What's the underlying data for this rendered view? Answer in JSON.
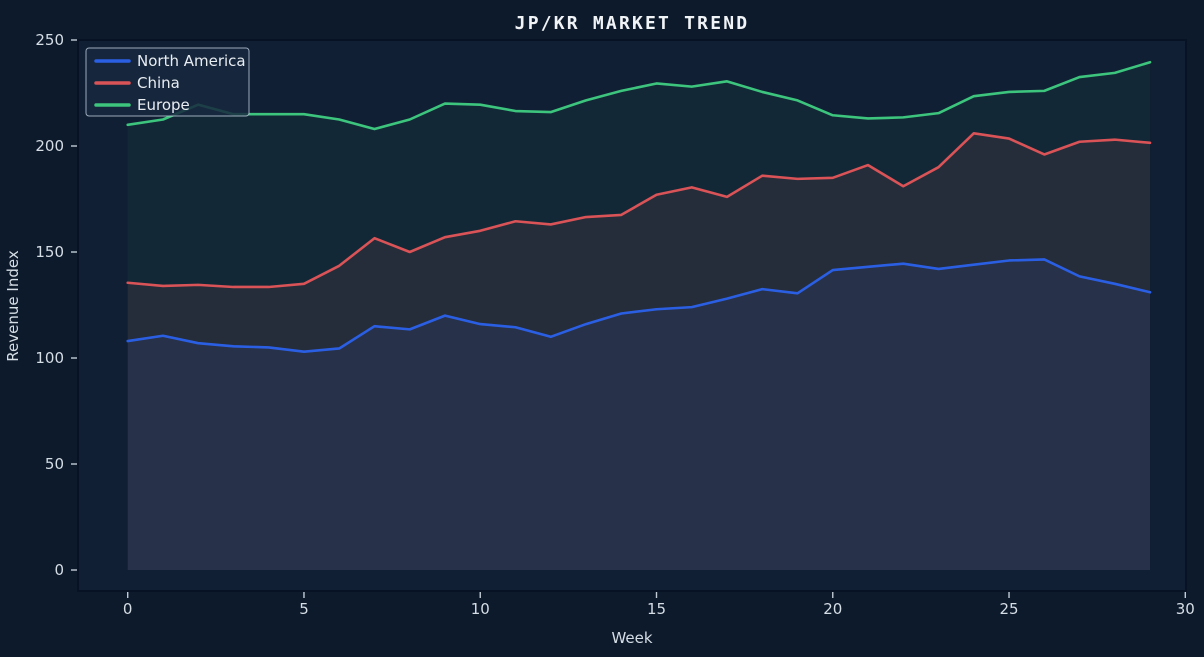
{
  "window": {
    "title": "JP/KR MARKET TREND"
  },
  "chart_data": {
    "type": "line",
    "title": "JP/KR MARKET TREND",
    "xlabel": "Week",
    "ylabel": "Revenue Index",
    "x": [
      0,
      1,
      2,
      3,
      4,
      5,
      6,
      7,
      8,
      9,
      10,
      11,
      12,
      13,
      14,
      15,
      16,
      17,
      18,
      19,
      20,
      21,
      22,
      23,
      24,
      25,
      26,
      27,
      28,
      29
    ],
    "series": [
      {
        "name": "North America",
        "color": "#2b5fe3",
        "fill_alpha": 0.11,
        "values": [
          108,
          110.5,
          107,
          105.5,
          105,
          103,
          104.5,
          115,
          113.5,
          120,
          116,
          114.5,
          110,
          116,
          121,
          123,
          124,
          128,
          132.5,
          130.5,
          141.5,
          143,
          144.5,
          142,
          144,
          146,
          146.5,
          138.5,
          135,
          131
        ]
      },
      {
        "name": "China",
        "color": "#d95357",
        "fill_alpha": 0.1,
        "values": [
          135.5,
          134,
          134.5,
          133.5,
          133.5,
          135,
          143.5,
          156.5,
          150,
          157,
          160,
          164.5,
          163,
          166.5,
          167.5,
          177,
          180.5,
          176,
          186,
          184.5,
          185,
          191,
          181,
          190,
          206,
          203.5,
          196,
          202,
          203,
          201.5
        ]
      },
      {
        "name": "Europe",
        "color": "#3dc47d",
        "fill_alpha": 0.055,
        "values": [
          210,
          212.5,
          219.5,
          215,
          215,
          215,
          212.5,
          208,
          212.5,
          220,
          219.5,
          216.5,
          216,
          221.5,
          226,
          229.5,
          228,
          230.5,
          225.5,
          221.5,
          214.5,
          213,
          213.5,
          215.5,
          223.5,
          225.5,
          226,
          232.5,
          234.5,
          239.5
        ]
      }
    ],
    "xticks": [
      0,
      5,
      10,
      15,
      20,
      25,
      30
    ],
    "yticks": [
      0,
      50,
      100,
      150,
      200,
      250
    ],
    "xlim": [
      -1.41,
      30.02
    ],
    "ylim": [
      -9.9,
      250
    ],
    "grid": false,
    "legend": {
      "position": "upper-left",
      "entries": [
        "North America",
        "China",
        "Europe"
      ]
    },
    "theme": {
      "figure_bg": "#0d1a2c",
      "plot_bg": "#101f33",
      "spine": "#081225",
      "tick_color": "#c2ccd6",
      "legend_bg": "rgba(24,40,62,0.85)",
      "legend_border": "rgba(180,195,210,0.85)"
    }
  }
}
